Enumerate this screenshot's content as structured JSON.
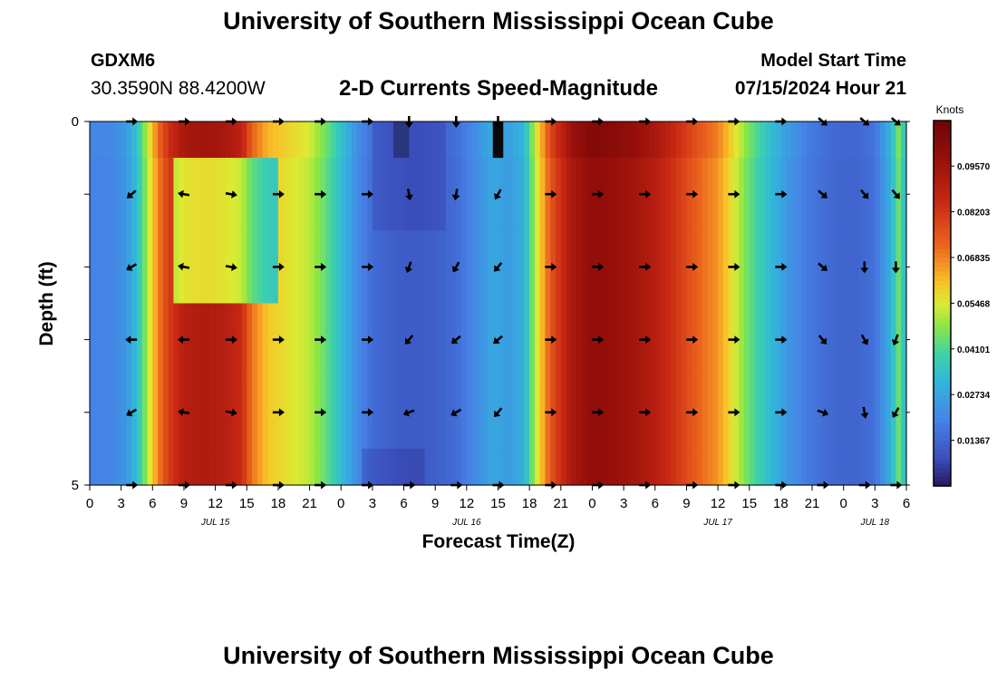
{
  "header": {
    "title": "University of Southern Mississippi Ocean Cube",
    "station": "GDXM6",
    "coordinates": "30.3590N  88.4200W",
    "subtitle": "2-D Currents Speed-Magnitude",
    "model_start_label": "Model Start Time",
    "model_start_value": "07/15/2024 Hour 21",
    "footer_title": "University of Southern Mississippi Ocean Cube"
  },
  "chart_data": {
    "type": "heatmap",
    "title": "2-D Currents Speed-Magnitude",
    "xlabel": "Forecast Time(Z)",
    "ylabel": "Depth (ft)",
    "x_range_hours": [
      0,
      78
    ],
    "ylim": [
      0,
      5
    ],
    "y_ticks": [
      0,
      1,
      2,
      3,
      4,
      5
    ],
    "y_tick_labels": [
      "0",
      "",
      "",
      "",
      "",
      "5"
    ],
    "x_ticks_hours": [
      0,
      3,
      6,
      9,
      12,
      15,
      18,
      21,
      24,
      27,
      30,
      33,
      36,
      39,
      42,
      45,
      48,
      51,
      54,
      57,
      60,
      63,
      66,
      69,
      72,
      75,
      78
    ],
    "x_tick_labels": [
      "0",
      "3",
      "6",
      "9",
      "12",
      "15",
      "18",
      "21",
      "0",
      "3",
      "6",
      "9",
      "12",
      "15",
      "18",
      "21",
      "0",
      "3",
      "6",
      "9",
      "12",
      "15",
      "18",
      "21",
      "0",
      "3",
      "6"
    ],
    "date_labels": [
      {
        "label": "JUL 15",
        "hour": 12
      },
      {
        "label": "JUL 16",
        "hour": 36
      },
      {
        "label": "JUL 17",
        "hour": 60
      },
      {
        "label": "JUL 18",
        "hour": 75
      }
    ],
    "colorbar": {
      "label": "Knots",
      "min": 0,
      "max": 0.1093,
      "tick_labels": [
        "0.01367",
        "0.02734",
        "0.04101",
        "0.05468",
        "0.06835",
        "0.08203",
        "0.09570"
      ],
      "tick_values": [
        0.01367,
        0.02734,
        0.04101,
        0.05468,
        0.06835,
        0.08203,
        0.0957
      ]
    },
    "speed_profile_hours": [
      0,
      2,
      3.5,
      4.5,
      5.5,
      6.5,
      7.5,
      9,
      11,
      13,
      14.5,
      15.5,
      17,
      19,
      21,
      22.5,
      24,
      25.5,
      27,
      29,
      31,
      33,
      35,
      37,
      38.5,
      40,
      41.5,
      42.5,
      44,
      46,
      48,
      50,
      52,
      54,
      56,
      58,
      60,
      61.5,
      63,
      65,
      67,
      69,
      71,
      73,
      75,
      76.5,
      77.3,
      78
    ],
    "speed_profile_knots": [
      0.02,
      0.02,
      0.024,
      0.033,
      0.05,
      0.068,
      0.08,
      0.09,
      0.092,
      0.09,
      0.085,
      0.07,
      0.06,
      0.056,
      0.052,
      0.044,
      0.033,
      0.022,
      0.015,
      0.012,
      0.011,
      0.012,
      0.015,
      0.022,
      0.028,
      0.025,
      0.03,
      0.05,
      0.075,
      0.093,
      0.1,
      0.098,
      0.095,
      0.09,
      0.082,
      0.073,
      0.066,
      0.055,
      0.044,
      0.032,
      0.023,
      0.017,
      0.014,
      0.013,
      0.016,
      0.03,
      0.045,
      0.03
    ],
    "surface_dark_hours": [
      29,
      30.5,
      38.5,
      39.5
    ],
    "vector_depths": [
      0,
      1,
      2,
      3,
      4,
      5
    ],
    "vector_hours": [
      4,
      9,
      13.5,
      18,
      22,
      26.5,
      30.5,
      35,
      39,
      44,
      48.5,
      53,
      57.5,
      61.5,
      66,
      70,
      74,
      77
    ],
    "vector_angles_deg": [
      [
        0,
        0,
        0,
        0,
        0,
        0,
        90,
        90,
        90,
        0,
        0,
        0,
        0,
        0,
        0,
        40,
        40,
        40
      ],
      [
        140,
        190,
        10,
        0,
        0,
        0,
        80,
        100,
        120,
        0,
        0,
        0,
        0,
        0,
        0,
        40,
        50,
        50
      ],
      [
        150,
        190,
        10,
        0,
        0,
        0,
        110,
        120,
        130,
        0,
        0,
        0,
        0,
        0,
        0,
        40,
        90,
        90
      ],
      [
        180,
        180,
        0,
        0,
        0,
        0,
        130,
        140,
        140,
        0,
        0,
        0,
        0,
        0,
        0,
        50,
        60,
        110
      ],
      [
        150,
        190,
        10,
        0,
        0,
        0,
        160,
        150,
        130,
        0,
        0,
        0,
        0,
        0,
        0,
        20,
        80,
        120
      ],
      [
        0,
        0,
        0,
        0,
        0,
        0,
        0,
        0,
        0,
        0,
        0,
        0,
        0,
        0,
        0,
        0,
        0,
        0
      ]
    ]
  }
}
